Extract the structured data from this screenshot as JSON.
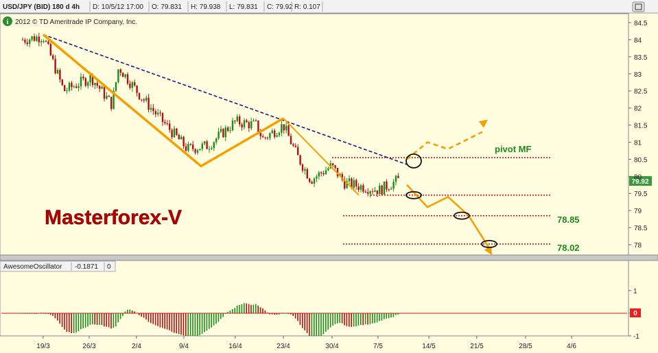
{
  "header": {
    "symbol": "USD/JPY (BID) 180 d 4h",
    "date": "D: 10/5/12 17:00",
    "open": "O: 79.831",
    "high": "H: 79.938",
    "low": "L: 79.831",
    "close": "C: 79.92",
    "range": "R: 0.107"
  },
  "copyright": "2012 © TD Ameritrade IP Company, Inc.",
  "info_icon_glyph": "i",
  "watermark": "Masterforex-V",
  "price_axis": {
    "ticks": [
      "84.5",
      "84",
      "83.5",
      "83",
      "82.5",
      "82",
      "81.5",
      "81",
      "80.5",
      "80",
      "79.5",
      "79",
      "78.5",
      "78"
    ],
    "current_price_label": "79.92"
  },
  "annotations": {
    "pivot": "pivot MF",
    "level1": "78.85",
    "level2": "78.02"
  },
  "oscillator": {
    "name": "AwesomeOscillator",
    "value": "-0.1871",
    "extra": "0",
    "ticks": [
      "1",
      "0",
      "-1"
    ],
    "zero_badge": "0"
  },
  "time_axis": {
    "labels": [
      "19/3",
      "26/3",
      "2/4",
      "9/4",
      "16/4",
      "23/4",
      "30/4",
      "7/5",
      "14/5",
      "21/5",
      "28/5",
      "4/6"
    ]
  },
  "colors": {
    "background": "#fffde0",
    "bull": "#1a8c1a",
    "bear": "#b01010",
    "trend_orange": "#f5a000",
    "dashed_trend": "#1a1a80",
    "dotted_level": "#c81818",
    "label_green": "#1e8a1e",
    "watermark": "#b00000",
    "price_badge": "#3a9a3a",
    "zero_badge": "#e82020"
  },
  "chart_data": {
    "type": "candlestick",
    "title": "USD/JPY (BID) 180 d 4h",
    "ylim": [
      77.9,
      84.6
    ],
    "x_labels": [
      "19/3",
      "26/3",
      "2/4",
      "9/4",
      "16/4",
      "23/4",
      "30/4",
      "7/5",
      "14/5",
      "21/5",
      "28/5",
      "4/6"
    ],
    "price_path": [
      {
        "x": "16/3",
        "y": 84.0
      },
      {
        "x": "19/3",
        "y": 84.1
      },
      {
        "x": "22/3",
        "y": 82.5
      },
      {
        "x": "26/3",
        "y": 82.9
      },
      {
        "x": "29/3",
        "y": 82.1
      },
      {
        "x": "30/3",
        "y": 83.2
      },
      {
        "x": "2/4",
        "y": 82.4
      },
      {
        "x": "5/4",
        "y": 81.7
      },
      {
        "x": "9/4",
        "y": 80.8
      },
      {
        "x": "12/4",
        "y": 80.9
      },
      {
        "x": "16/4",
        "y": 81.6
      },
      {
        "x": "19/4",
        "y": 81.5
      },
      {
        "x": "20/4",
        "y": 81.1
      },
      {
        "x": "23/4",
        "y": 81.5
      },
      {
        "x": "25/4",
        "y": 80.6
      },
      {
        "x": "27/4",
        "y": 79.9
      },
      {
        "x": "30/4",
        "y": 80.3
      },
      {
        "x": "2/5",
        "y": 79.8
      },
      {
        "x": "7/5",
        "y": 79.6
      },
      {
        "x": "10/5",
        "y": 79.92
      }
    ],
    "waves": [
      {
        "x": "19/3",
        "y": 84.15
      },
      {
        "x": "11/4",
        "y": 80.3
      },
      {
        "x": "23/4",
        "y": 81.7
      },
      {
        "x": "4/5",
        "y": 79.45
      }
    ],
    "trendline": [
      {
        "x": "19/3",
        "y": 84.15
      },
      {
        "x": "11/5",
        "y": 80.35
      }
    ],
    "projection_up": [
      {
        "x": "11/5",
        "y": 80.5
      },
      {
        "x": "14/5",
        "y": 81.0
      },
      {
        "x": "17/5",
        "y": 80.8
      },
      {
        "x": "22/5",
        "y": 81.3
      }
    ],
    "projection_down": [
      {
        "x": "11/5",
        "y": 79.75
      },
      {
        "x": "14/5",
        "y": 79.1
      },
      {
        "x": "17/5",
        "y": 79.4
      },
      {
        "x": "20/5",
        "y": 78.85
      },
      {
        "x": "23/5",
        "y": 77.9
      }
    ],
    "levels": [
      {
        "label": "pivot MF",
        "value": 80.55
      },
      {
        "label": "",
        "value": 79.45
      },
      {
        "label": "78.85",
        "value": 78.85
      },
      {
        "label": "78.02",
        "value": 78.02
      }
    ],
    "markers": [
      {
        "x": "12/5",
        "y": 80.45
      },
      {
        "x": "12/5",
        "y": 79.45
      },
      {
        "x": "19/5",
        "y": 78.85
      },
      {
        "x": "23/5",
        "y": 78.02
      }
    ],
    "awesome_oscillator": {
      "ylim": [
        -1,
        1
      ],
      "last_value": -0.1871
    }
  }
}
